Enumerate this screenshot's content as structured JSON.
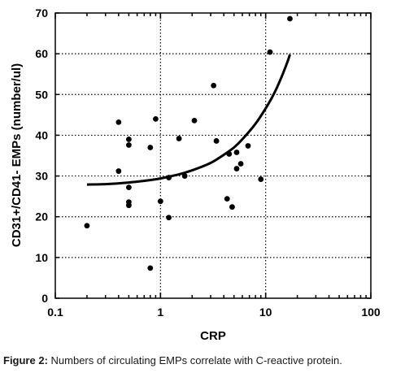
{
  "chart_data": {
    "type": "scatter",
    "xlabel": "CRP",
    "ylabel": "CD31+/CD41- EMPs (number/ul)",
    "x_scale": "log",
    "xlim": [
      0.1,
      100
    ],
    "ylim": [
      0,
      70
    ],
    "x_ticks": [
      0.1,
      1,
      10,
      100
    ],
    "x_tick_labels": [
      "0.1",
      "1",
      "10",
      "100"
    ],
    "y_ticks": [
      0,
      10,
      20,
      30,
      40,
      50,
      60,
      70
    ],
    "y_tick_labels": [
      "0",
      "10",
      "20",
      "30",
      "40",
      "50",
      "60",
      "70"
    ],
    "grid": true,
    "points": [
      {
        "x": 0.2,
        "y": 17.8
      },
      {
        "x": 0.4,
        "y": 43.2
      },
      {
        "x": 0.4,
        "y": 31.2
      },
      {
        "x": 0.5,
        "y": 39.0
      },
      {
        "x": 0.5,
        "y": 37.6
      },
      {
        "x": 0.5,
        "y": 27.2
      },
      {
        "x": 0.5,
        "y": 23.6
      },
      {
        "x": 0.5,
        "y": 22.8
      },
      {
        "x": 0.8,
        "y": 37.0
      },
      {
        "x": 0.8,
        "y": 7.4
      },
      {
        "x": 0.9,
        "y": 44.0
      },
      {
        "x": 1.0,
        "y": 23.8
      },
      {
        "x": 1.2,
        "y": 29.6
      },
      {
        "x": 1.2,
        "y": 19.8
      },
      {
        "x": 1.5,
        "y": 39.2
      },
      {
        "x": 1.7,
        "y": 30.0
      },
      {
        "x": 2.1,
        "y": 43.6
      },
      {
        "x": 3.2,
        "y": 52.2
      },
      {
        "x": 3.4,
        "y": 38.6
      },
      {
        "x": 4.3,
        "y": 24.4
      },
      {
        "x": 4.5,
        "y": 35.4
      },
      {
        "x": 4.8,
        "y": 22.4
      },
      {
        "x": 5.3,
        "y": 35.8
      },
      {
        "x": 5.3,
        "y": 31.8
      },
      {
        "x": 5.8,
        "y": 33.0
      },
      {
        "x": 6.8,
        "y": 37.4
      },
      {
        "x": 9.0,
        "y": 29.2
      },
      {
        "x": 11.0,
        "y": 60.4
      },
      {
        "x": 17.0,
        "y": 68.6
      }
    ],
    "fit_curve": [
      {
        "x": 0.2,
        "y": 27.9
      },
      {
        "x": 0.3,
        "y": 28.0
      },
      {
        "x": 0.5,
        "y": 28.4
      },
      {
        "x": 0.8,
        "y": 29.0
      },
      {
        "x": 1.0,
        "y": 29.4
      },
      {
        "x": 1.5,
        "y": 30.4
      },
      {
        "x": 2.0,
        "y": 31.4
      },
      {
        "x": 3.0,
        "y": 33.2
      },
      {
        "x": 4.0,
        "y": 35.2
      },
      {
        "x": 5.0,
        "y": 37.0
      },
      {
        "x": 6.0,
        "y": 39.0
      },
      {
        "x": 8.0,
        "y": 42.8
      },
      {
        "x": 10.0,
        "y": 46.6
      },
      {
        "x": 12.0,
        "y": 50.2
      },
      {
        "x": 14.0,
        "y": 54.0
      },
      {
        "x": 16.0,
        "y": 57.8
      },
      {
        "x": 17.0,
        "y": 59.8
      }
    ]
  },
  "caption": {
    "label": "Figure 2:",
    "text": " Numbers of circulating EMPs correlate with C-reactive protein."
  }
}
